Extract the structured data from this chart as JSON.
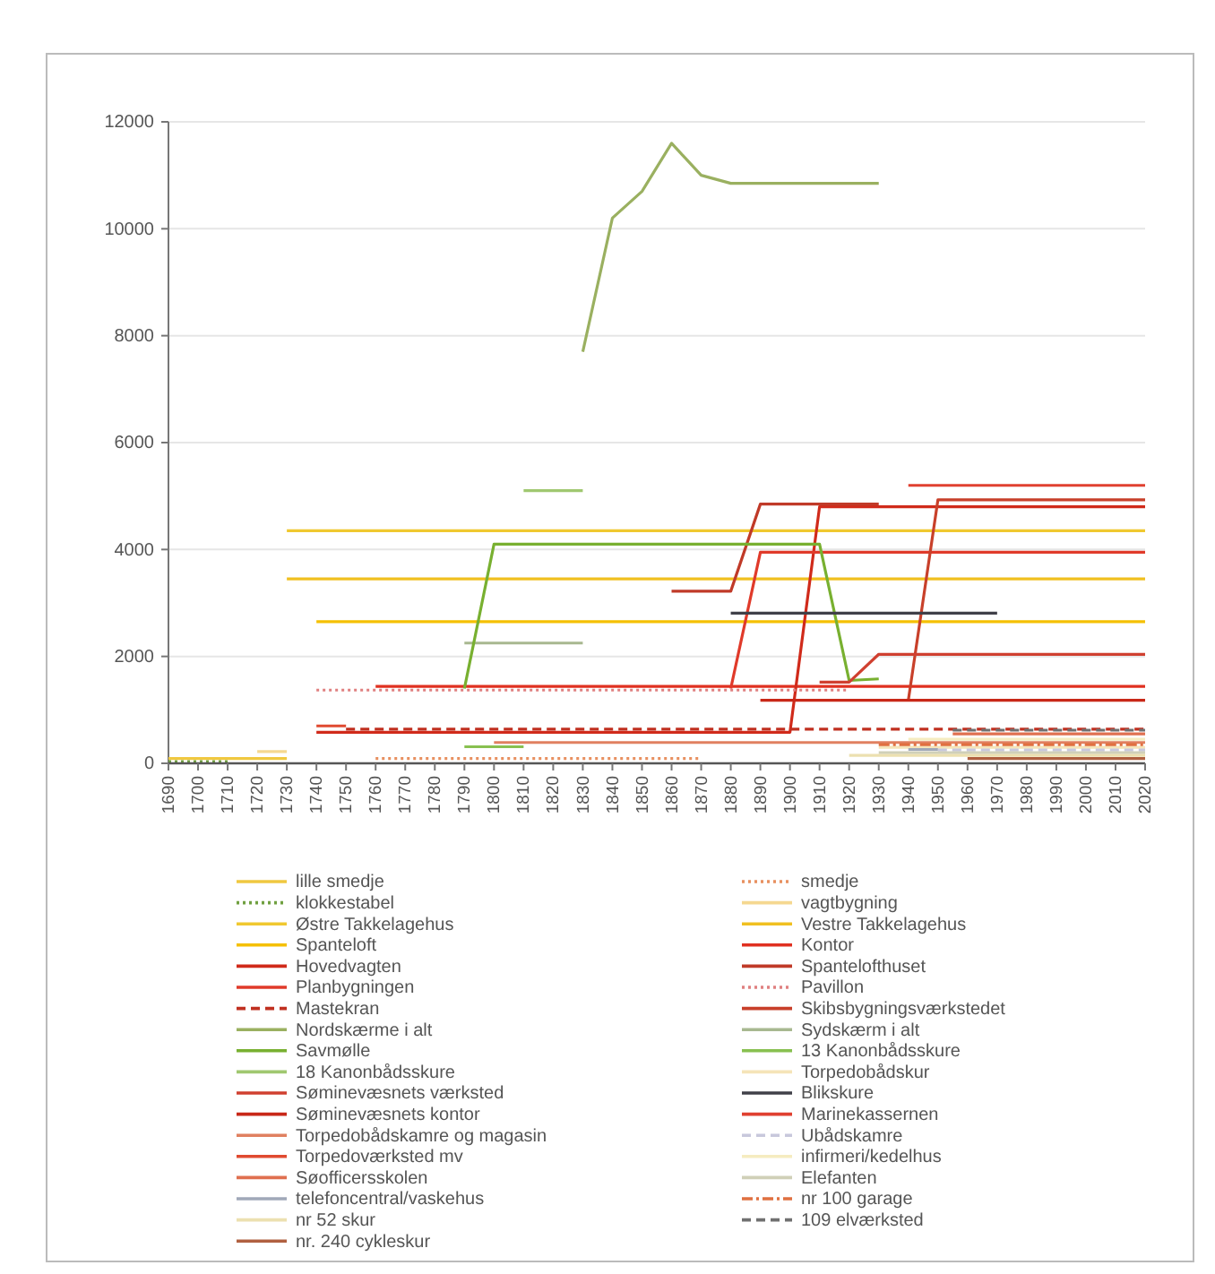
{
  "chart_data": {
    "type": "line",
    "xlim": [
      1690,
      2020
    ],
    "xticks": [
      1690,
      1700,
      1710,
      1720,
      1730,
      1740,
      1750,
      1760,
      1770,
      1780,
      1790,
      1800,
      1810,
      1820,
      1830,
      1840,
      1850,
      1860,
      1870,
      1880,
      1890,
      1900,
      1910,
      1920,
      1930,
      1940,
      1950,
      1960,
      1970,
      1980,
      1990,
      2000,
      2010,
      2020
    ],
    "ylim": [
      0,
      12000
    ],
    "yticks": [
      0,
      2000,
      4000,
      6000,
      8000,
      10000,
      12000
    ],
    "grid": "y",
    "legend": "bottom",
    "marker": "none",
    "series": [
      {
        "name": "lille smedje",
        "color": "#f0c840",
        "x": [
          1690,
          1730
        ],
        "values": [
          90,
          90
        ]
      },
      {
        "name": "smedje",
        "color": "#e89060",
        "line_style": "dotted",
        "x": [
          1760,
          1870
        ],
        "values": [
          90,
          90
        ]
      },
      {
        "name": "klokkestabel",
        "color": "#70a040",
        "line_style": "dotted",
        "x": [
          1690,
          1710
        ],
        "values": [
          30,
          30
        ]
      },
      {
        "name": "vagtbygning",
        "color": "#f5d890",
        "x": [
          1720,
          1730
        ],
        "values": [
          220,
          220
        ]
      },
      {
        "name": "Østre Takkelagehus",
        "color": "#f0c830",
        "x": [
          1730,
          2020
        ],
        "values": [
          4350,
          4350
        ]
      },
      {
        "name": "Vestre Takkelagehus",
        "color": "#f0c020",
        "x": [
          1730,
          2020
        ],
        "values": [
          3450,
          3450
        ]
      },
      {
        "name": "Spanteloft",
        "color": "#f5c000",
        "x": [
          1740,
          2020
        ],
        "values": [
          2650,
          2650
        ]
      },
      {
        "name": "Kontor",
        "color": "#e03020",
        "x": [
          1760,
          2020
        ],
        "values": [
          1440,
          1440
        ]
      },
      {
        "name": "Hovedvagten",
        "color": "#d02a1a",
        "x": [
          1740,
          1900,
          1910,
          2020
        ],
        "values": [
          580,
          580,
          4800,
          4800
        ]
      },
      {
        "name": "Spantelofthuset",
        "color": "#c03a28",
        "x": [
          1860,
          1880,
          1890,
          1930
        ],
        "values": [
          3220,
          3220,
          4850,
          4850
        ]
      },
      {
        "name": "Planbygningen",
        "color": "#e03a2a",
        "x": [
          1880,
          1890,
          2020
        ],
        "values": [
          1400,
          3950,
          3950
        ]
      },
      {
        "name": "Pavillon",
        "color": "#e08080",
        "line_style": "dotted",
        "x": [
          1740,
          1920
        ],
        "values": [
          1370,
          1370
        ]
      },
      {
        "name": "Mastekran",
        "color": "#c03020",
        "line_style": "dashed",
        "x": [
          1750,
          2020
        ],
        "values": [
          640,
          640
        ]
      },
      {
        "name": "Skibsbygningsværkstedet",
        "color": "#c8402a",
        "x": [
          1940,
          1950,
          2020
        ],
        "values": [
          1180,
          4930,
          4930
        ]
      },
      {
        "name": "Nordskærme i alt",
        "color": "#9ab060",
        "x": [
          1830,
          1840,
          1850,
          1860,
          1870,
          1880,
          1930
        ],
        "values": [
          7700,
          10200,
          10700,
          11600,
          11000,
          10850,
          10850
        ]
      },
      {
        "name": "Sydskærm i alt",
        "color": "#a8b890",
        "x": [
          1790,
          1830
        ],
        "values": [
          2250,
          2250
        ]
      },
      {
        "name": "Savmølle",
        "color": "#78b030",
        "x": [
          1790,
          1800,
          1910,
          1920,
          1930
        ],
        "values": [
          1400,
          4100,
          4100,
          1550,
          1580
        ]
      },
      {
        "name": "13 Kanonbådsskure",
        "color": "#88c050",
        "x": [
          1790,
          1810
        ],
        "values": [
          310,
          310
        ]
      },
      {
        "name": "18 Kanonbådsskure",
        "color": "#a0c870",
        "x": [
          1810,
          1830
        ],
        "values": [
          5100,
          5100
        ]
      },
      {
        "name": "Torpedobådskur",
        "color": "#f5e4b8",
        "x": [
          1930,
          2020
        ],
        "values": [
          300,
          300
        ]
      },
      {
        "name": "Søminevæsnets værksted",
        "color": "#d04030",
        "x": [
          1910,
          1920,
          1930,
          2020
        ],
        "values": [
          1520,
          1520,
          2040,
          2040
        ]
      },
      {
        "name": "Blikskure",
        "color": "#404048",
        "x": [
          1880,
          1970
        ],
        "values": [
          2810,
          2810
        ]
      },
      {
        "name": "Søminevæsnets kontor",
        "color": "#c82818",
        "x": [
          1890,
          2020
        ],
        "values": [
          1180,
          1180
        ]
      },
      {
        "name": "Marinekassernen",
        "color": "#e04030",
        "x": [
          1940,
          2020
        ],
        "values": [
          5200,
          5200
        ]
      },
      {
        "name": "Torpedobådskamre og magasin",
        "color": "#e08060",
        "x": [
          1800,
          2020
        ],
        "values": [
          390,
          390
        ]
      },
      {
        "name": "Ubådskamre",
        "color": "#c8c8dc",
        "line_style": "dashed",
        "x": [
          1950,
          2020
        ],
        "values": [
          250,
          250
        ]
      },
      {
        "name": "Torpedoværksted mv",
        "color": "#e04a30",
        "x": [
          1740,
          1750
        ],
        "values": [
          700,
          700
        ]
      },
      {
        "name": "infirmeri/kedelhus",
        "color": "#f5ecc0",
        "x": [
          1940,
          2020
        ],
        "values": [
          450,
          450
        ]
      },
      {
        "name": "Søofficersskolen",
        "color": "#e07050",
        "x": [
          1955,
          2020
        ],
        "values": [
          550,
          550
        ]
      },
      {
        "name": "Elefanten",
        "color": "#d0d0b8",
        "x": [
          1930,
          2020
        ],
        "values": [
          200,
          200
        ]
      },
      {
        "name": "telefoncentral/vaskehus",
        "color": "#a0a8b8",
        "x": [
          1940,
          1950
        ],
        "values": [
          260,
          260
        ]
      },
      {
        "name": "nr 100 garage",
        "color": "#e07040",
        "line_style": "dashdot",
        "x": [
          1930,
          2020
        ],
        "values": [
          350,
          350
        ]
      },
      {
        "name": "nr 52 skur",
        "color": "#ece0b0",
        "x": [
          1920,
          2020
        ],
        "values": [
          150,
          150
        ]
      },
      {
        "name": "109 elværksted",
        "color": "#707070",
        "line_style": "dashed",
        "x": [
          1955,
          2020
        ],
        "values": [
          620,
          620
        ]
      },
      {
        "name": "nr. 240 cykleskur",
        "color": "#b06040",
        "x": [
          1960,
          2020
        ],
        "values": [
          90,
          90
        ]
      }
    ]
  }
}
